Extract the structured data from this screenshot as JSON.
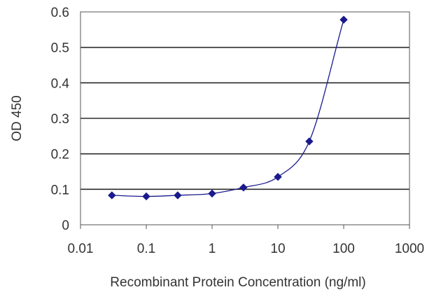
{
  "chart_data": {
    "type": "scatter",
    "title": "",
    "xlabel": "Recombinant Protein Concentration (ng/ml)",
    "ylabel": "OD 450",
    "x_scale": "log",
    "xlim": [
      0.01,
      1000
    ],
    "ylim": [
      0,
      0.6
    ],
    "x_ticks": [
      "0.01",
      "0.1",
      "1",
      "10",
      "100",
      "1000"
    ],
    "y_ticks": [
      "0",
      "0.1",
      "0.2",
      "0.3",
      "0.4",
      "0.5",
      "0.6"
    ],
    "grid": "horizontal",
    "legend": "none",
    "series": [
      {
        "x": [
          0.03,
          0.1,
          0.3,
          1,
          3,
          10,
          30,
          100
        ],
        "y": [
          0.083,
          0.08,
          0.083,
          0.088,
          0.105,
          0.135,
          0.235,
          0.578
        ],
        "color": "#1a1a8c",
        "marker": "diamond",
        "fit_line": true
      }
    ]
  }
}
